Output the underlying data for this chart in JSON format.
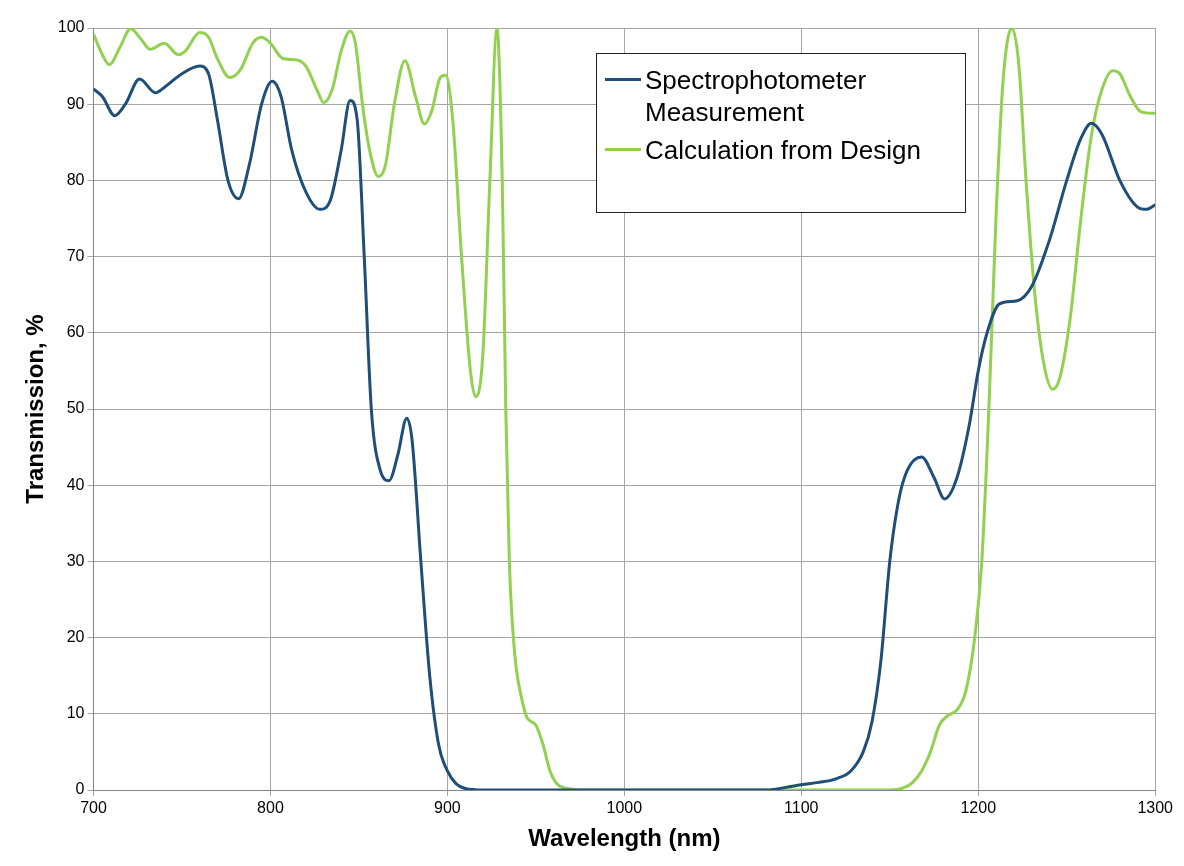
{
  "chart_data": {
    "type": "line",
    "xlabel": "Wavelength (nm)",
    "ylabel": "Transmission, %",
    "xlim": [
      700,
      1300
    ],
    "xticks": [
      700,
      800,
      900,
      1000,
      1100,
      1200,
      1300
    ],
    "ylim": [
      0,
      100
    ],
    "yticks": [
      0,
      10,
      20,
      30,
      40,
      50,
      60,
      70,
      80,
      90,
      100
    ],
    "grid": true,
    "legend": "top right",
    "marker": "none",
    "line_style": "solid",
    "series": [
      {
        "name": "Spectrophotometer Measurement",
        "color": "#1f4e79",
        "x": [
          700,
          705,
          712,
          718,
          726,
          735,
          740,
          750,
          760,
          765,
          770,
          776,
          782,
          788,
          795,
          801,
          806,
          812,
          820,
          828,
          834,
          840,
          845,
          849,
          853,
          857,
          862,
          867,
          872,
          877,
          880,
          885,
          890,
          895,
          900,
          905,
          910,
          920,
          1000,
          1080,
          1095,
          1100,
          1110,
          1120,
          1128,
          1135,
          1140,
          1145,
          1150,
          1155,
          1160,
          1168,
          1175,
          1181,
          1188,
          1195,
          1200,
          1205,
          1212,
          1222,
          1230,
          1240,
          1250,
          1258,
          1264,
          1270,
          1280,
          1290,
          1295,
          1300
        ],
        "values": [
          92,
          91,
          88.5,
          90,
          93.3,
          91.5,
          92.2,
          94,
          95,
          94,
          88,
          80,
          77.6,
          82,
          90,
          93,
          91,
          84,
          78.5,
          76.2,
          77.5,
          84,
          90.5,
          88,
          70,
          50,
          42,
          40.6,
          44,
          48.8,
          46,
          30,
          15,
          6,
          2.5,
          0.8,
          0.2,
          0,
          0,
          0,
          0.5,
          0.7,
          1,
          1.5,
          2.5,
          5,
          9,
          17,
          30,
          38,
          42,
          43.7,
          41,
          38.2,
          41,
          48,
          55,
          60,
          63.8,
          64.2,
          66,
          72,
          80,
          85.5,
          87.5,
          86,
          80,
          76.5,
          76.2,
          76.8
        ]
      },
      {
        "name": "Calculation from Design",
        "color": "#92d050",
        "x": [
          700,
          704,
          709,
          715,
          721,
          727,
          732,
          740,
          748,
          752,
          760,
          765,
          770,
          777,
          783,
          790,
          795,
          800,
          807,
          815,
          820,
          827,
          830,
          835,
          840,
          845,
          848,
          852,
          856,
          861,
          865,
          870,
          876,
          882,
          887,
          891,
          896,
          899,
          903,
          908,
          913,
          916,
          920,
          924,
          928,
          931,
          933,
          935,
          938,
          942,
          945,
          950,
          954,
          958,
          962,
          968,
          975,
          1150,
          1158,
          1163,
          1168,
          1173,
          1178,
          1183,
          1188,
          1193,
          1198,
          1202,
          1206,
          1210,
          1214,
          1219,
          1223,
          1227,
          1232,
          1237,
          1242,
          1246,
          1252,
          1258,
          1264,
          1270,
          1276,
          1280,
          1286,
          1292,
          1300
        ],
        "values": [
          99.2,
          97,
          95.2,
          97.5,
          99.9,
          98.5,
          97.2,
          98,
          96.5,
          97,
          99.4,
          98.8,
          96,
          93.5,
          94.5,
          98,
          98.8,
          98,
          96,
          95.8,
          95,
          91.5,
          90.2,
          92,
          97,
          99.6,
          98,
          90,
          84,
          80.5,
          82,
          90,
          95.7,
          91,
          87.4,
          89,
          93.5,
          93.8,
          88,
          70,
          55,
          51.6,
          57,
          80,
          99.9,
          80,
          50,
          30,
          18,
          12,
          9.5,
          8.5,
          6,
          2.5,
          0.8,
          0.2,
          0,
          0,
          0.3,
          1,
          2.5,
          5,
          8.5,
          9.8,
          10.5,
          13,
          20,
          30,
          50,
          75,
          93,
          100,
          95,
          80,
          65,
          56,
          52.6,
          54,
          62,
          75,
          86,
          92,
          94.4,
          94,
          91,
          89,
          88.8
        ]
      }
    ]
  }
}
